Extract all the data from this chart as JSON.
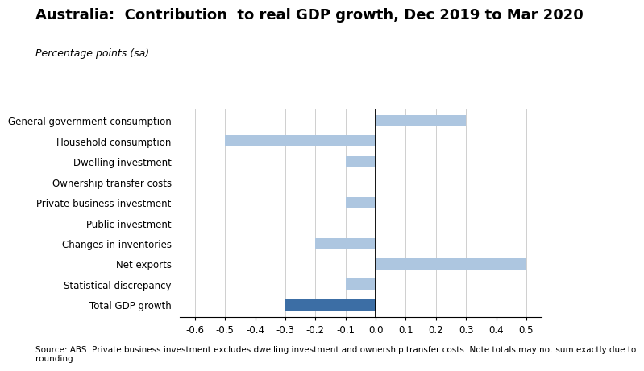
{
  "title": "Australia:  Contribution  to real GDP growth, Dec 2019 to Mar 2020",
  "subtitle": "Percentage points (sa)",
  "categories": [
    "General government consumption",
    "Household consumption",
    "Dwelling investment",
    "Ownership transfer costs",
    "Private business investment",
    "Public investment",
    "Changes in inventories",
    "Net exports",
    "Statistical discrepancy",
    "Total GDP growth"
  ],
  "values": [
    0.3,
    -0.5,
    -0.1,
    0.0,
    -0.1,
    0.0,
    -0.2,
    0.5,
    -0.1,
    -0.3
  ],
  "bar_colors": [
    "#adc6e0",
    "#adc6e0",
    "#adc6e0",
    "#adc6e0",
    "#adc6e0",
    "#adc6e0",
    "#adc6e0",
    "#adc6e0",
    "#adc6e0",
    "#3c6ea5"
  ],
  "xlim": [
    -0.65,
    0.55
  ],
  "xticks": [
    -0.6,
    -0.5,
    -0.4,
    -0.3,
    -0.2,
    -0.1,
    0.0,
    0.1,
    0.2,
    0.3,
    0.4,
    0.5
  ],
  "xtick_labels": [
    "-0.6",
    "-0.5",
    "-0.4",
    "-0.3",
    "-0.2",
    "-0.1",
    "0.0",
    "0.1",
    "0.2",
    "0.3",
    "0.4",
    "0.5"
  ],
  "source_text": "Source: ABS. Private business investment excludes dwelling investment and ownership transfer costs. Note totals may not sum exactly due to\nrounding.",
  "background_color": "#ffffff",
  "bar_height": 0.55,
  "title_fontsize": 13,
  "subtitle_fontsize": 9,
  "tick_fontsize": 8.5,
  "label_fontsize": 8.5,
  "source_fontsize": 7.5,
  "grid_color": "#c8c8c8",
  "zero_line_color": "#000000"
}
